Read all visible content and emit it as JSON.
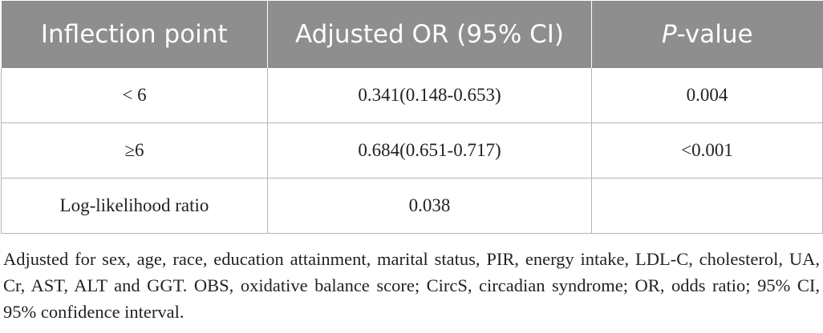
{
  "table": {
    "headers": [
      {
        "text": "Inflection point",
        "italic_prefix": ""
      },
      {
        "text": "Adjusted OR (95% CI)",
        "italic_prefix": ""
      },
      {
        "text": "-value",
        "italic_prefix": "P"
      }
    ],
    "rows": [
      [
        "< 6",
        "0.341(0.148-0.653)",
        "0.004"
      ],
      [
        "≥6",
        "0.684(0.651-0.717)",
        "<0.001"
      ],
      [
        "Log-likelihood ratio",
        "0.038",
        ""
      ]
    ],
    "header_bg": "#8e8e8e",
    "border_color": "#b5b5b5"
  },
  "footnote": "Adjusted for sex, age, race, education attainment, marital status, PIR, energy intake, LDL-C, cholesterol, UA, Cr, AST, ALT and GGT. OBS, oxidative balance score; CircS, circadian syndrome; OR, odds ratio; 95% CI, 95% confidence interval."
}
